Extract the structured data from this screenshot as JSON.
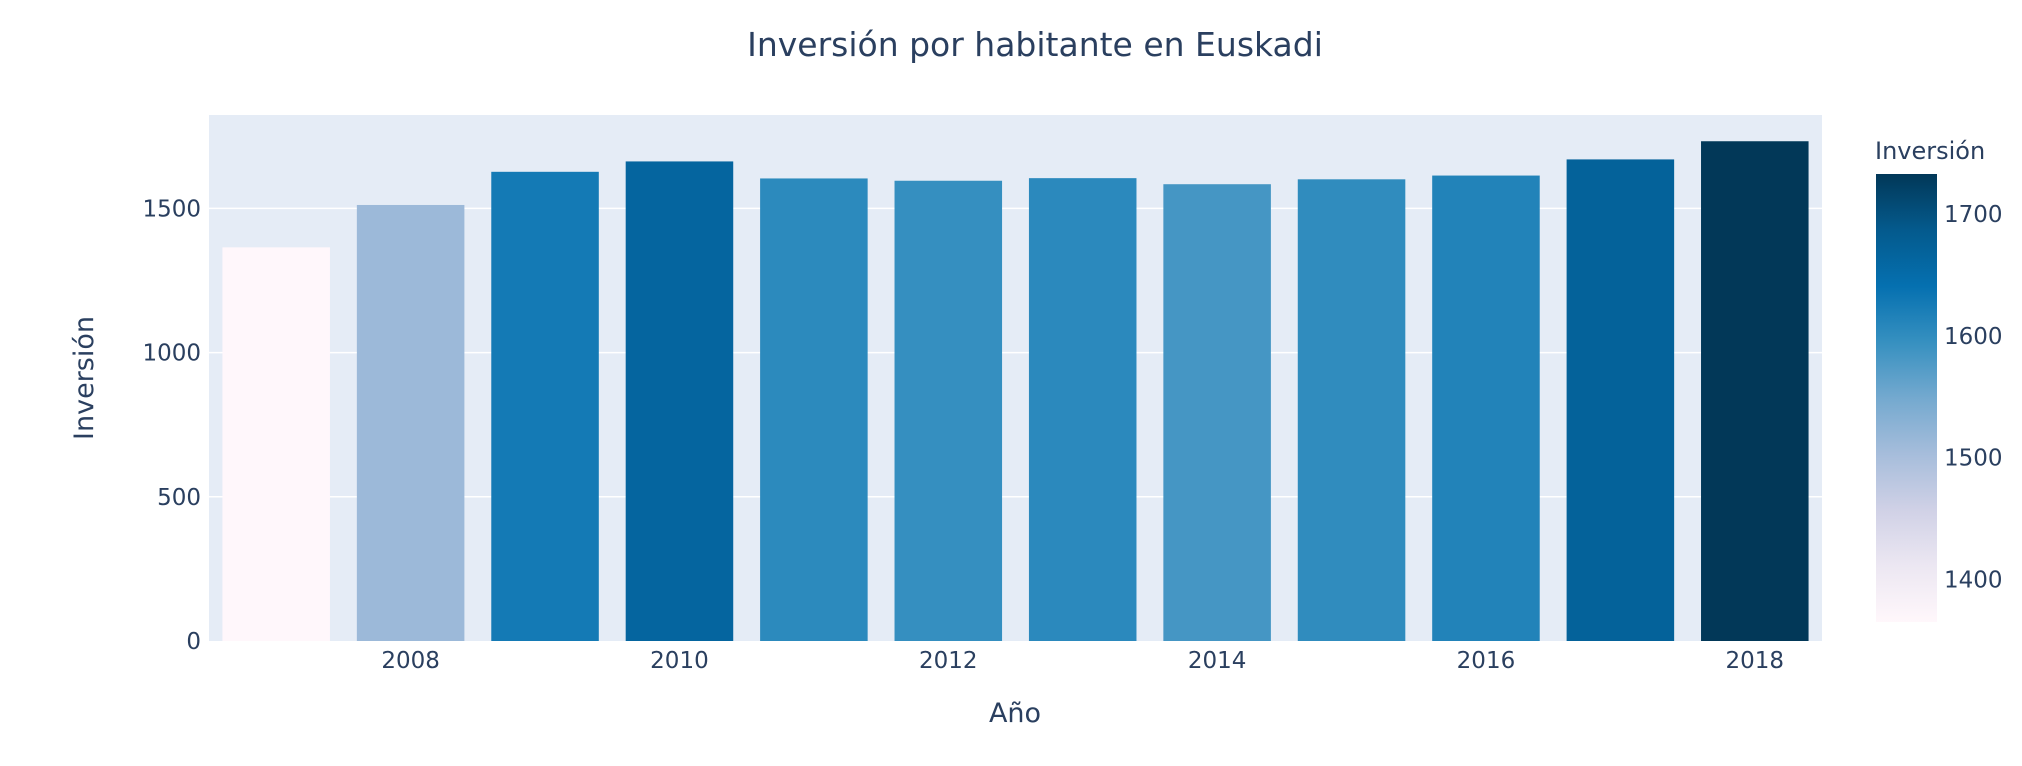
{
  "chart_data": {
    "type": "bar",
    "title": "Inversión por habitante en Euskadi",
    "xlabel": "Año",
    "ylabel": "Inversión",
    "x": [
      2007,
      2008,
      2009,
      2010,
      2011,
      2012,
      2013,
      2014,
      2015,
      2016,
      2017,
      2018
    ],
    "values": [
      1365,
      1512,
      1627,
      1663,
      1604,
      1596,
      1605,
      1584,
      1601,
      1614,
      1670,
      1733
    ],
    "x_tick_labels": [
      "2008",
      "2010",
      "2012",
      "2014",
      "2016",
      "2018"
    ],
    "y_tick_labels": [
      "0",
      "500",
      "1000",
      "1500"
    ],
    "ylim": [
      0,
      1824
    ],
    "grid": true,
    "plot_background": "#e5ecf6",
    "colorbar": {
      "title": "Inversión",
      "tick_labels": [
        "1400",
        "1500",
        "1600",
        "1700"
      ],
      "range": [
        1365,
        1733
      ],
      "colorscale": [
        "#fff7fb",
        "#ece7f2",
        "#d0d1e6",
        "#a6bddb",
        "#74a9cf",
        "#3690c0",
        "#0570b0",
        "#045a8d",
        "#023858"
      ]
    }
  }
}
